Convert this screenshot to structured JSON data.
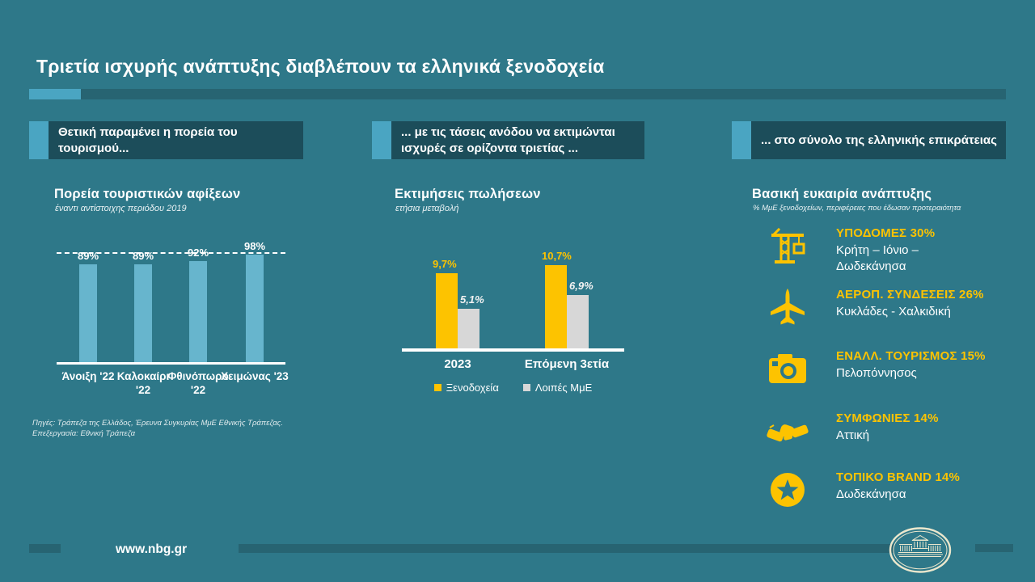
{
  "page": {
    "title": "Τριετία ισχυρής ανάπτυξης διαβλέπουν τα ελληνικά ξενοδοχεία"
  },
  "colors": {
    "background": "#2e7889",
    "panel_dark": "#1c4d5a",
    "accent_light_blue": "#4aa5c2",
    "bar_light_blue": "#67b5cd",
    "yellow": "#fdc300",
    "gray": "#d7d7d7",
    "divider_dark": "#276472",
    "logo_cream": "#ece8cd"
  },
  "section_headers": [
    "Θετική παραμένει η πορεία του τουρισμού...",
    "... με τις τάσεις ανόδου να εκτιμώνται ισχυρές σε ορίζοντα τριετίας ...",
    "... στο σύνολο της ελληνικής επικράτειας"
  ],
  "chart_data": [
    {
      "type": "bar",
      "title": "Πορεία τουριστικών αφίξεων",
      "subtitle": "έναντι αντίστοιχης περιόδου 2019",
      "categories": [
        "Άνοιξη '22",
        "Καλοκαίρι '22",
        "Φθινόπωρο '22",
        "Χειμώνας '23"
      ],
      "values": [
        89,
        89,
        92,
        98
      ],
      "value_labels": [
        "89%",
        "89%",
        "92%",
        "98%"
      ],
      "reference_line": 100,
      "ylim": [
        0,
        110
      ],
      "bar_color": "#67b5cd",
      "grid": false,
      "legend_position": "none"
    },
    {
      "type": "bar",
      "title": "Εκτιμήσεις πωλήσεων",
      "subtitle": "ετήσια μεταβολή",
      "categories": [
        "2023",
        "Επόμενη 3ετία"
      ],
      "series": [
        {
          "name": "Ξενοδοχεία",
          "values": [
            9.7,
            10.7
          ],
          "value_labels": [
            "9,7%",
            "10,7%"
          ],
          "color": "#fdc300"
        },
        {
          "name": "Λοιπές ΜμΕ",
          "values": [
            5.1,
            6.9
          ],
          "value_labels": [
            "5,1%",
            "6,9%"
          ],
          "color": "#d7d7d7"
        }
      ],
      "ylim": [
        0,
        12
      ],
      "grid": false,
      "legend_position": "bottom"
    }
  ],
  "opportunities": {
    "title": "Βασική ευκαιρία ανάπτυξης",
    "subtitle": "% ΜμΕ ξενοδοχείων, περιφέρειες που έδωσαν προτεραιότητα",
    "items": [
      {
        "icon": "crane-icon",
        "label": "ΥΠΟΔΟΜΕΣ 30%",
        "regions": "Κρήτη – Ιόνιο – Δωδεκάνησα"
      },
      {
        "icon": "airplane-icon",
        "label": "ΑΕΡΟΠ. ΣΥΝΔΕΣΕΙΣ 26%",
        "regions": "Κυκλάδες - Χαλκιδική"
      },
      {
        "icon": "camera-icon",
        "label": "ΕΝΑΛΛ. ΤΟΥΡΙΣΜΟΣ 15%",
        "regions": "Πελοπόννησος"
      },
      {
        "icon": "handshake-icon",
        "label": "ΣΥΜΦΩΝΙΕΣ 14%",
        "regions": "Αττική"
      },
      {
        "icon": "star-badge-icon",
        "label": "ΤΟΠΙΚΟ BRAND 14%",
        "regions": "Δωδεκάνησα"
      }
    ]
  },
  "sources": {
    "line1": "Πηγές: Τράπεζα της Ελλάδος, Έρευνα Συγκυρίας ΜμΕ Εθνικής Τράπεζας.",
    "line2": "Επεξεργασία: Εθνική Τράπεζα"
  },
  "footer": {
    "url": "www.nbg.gr",
    "logo": "nbg-building-emblem"
  }
}
